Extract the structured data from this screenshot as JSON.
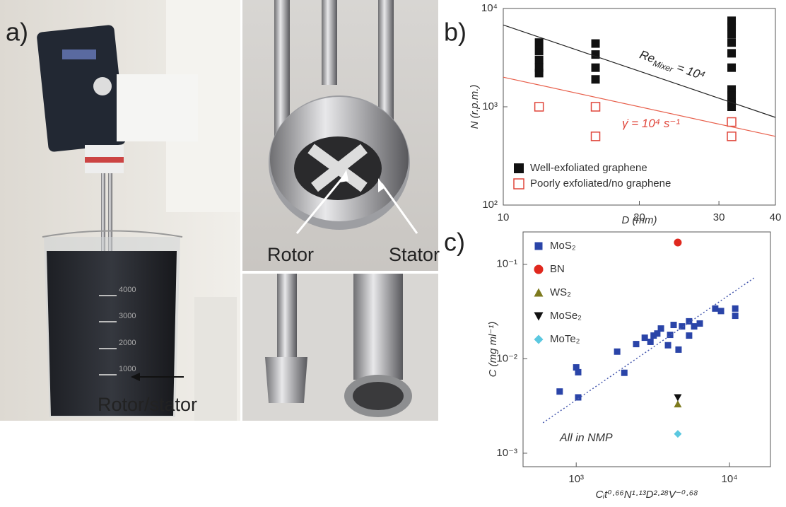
{
  "photo_labels": {
    "panel": "a)",
    "rotor_stator": "Rotor/stator",
    "rotor": "Rotor",
    "stator": "Stator",
    "beaker_marks": [
      "4000",
      "3000",
      "2000",
      "1000"
    ]
  },
  "chart_data": [
    {
      "type": "scatter",
      "panel": "b)",
      "xlabel": "D (mm)",
      "ylabel": "N (r.p.m.)",
      "xscale": "log",
      "yscale": "log",
      "xlim": [
        10,
        40
      ],
      "ylim": [
        100,
        10000
      ],
      "xticks": [
        10,
        20,
        30,
        40
      ],
      "yticks": [
        {
          "value": 100,
          "label": "10²"
        },
        {
          "value": 1000,
          "label": "10³"
        },
        {
          "value": 10000,
          "label": "10⁴"
        }
      ],
      "legend": "lower left",
      "series": [
        {
          "name": "Well-exfoliated graphene",
          "color": "#111111",
          "marker": "square",
          "x": [
            12,
            12,
            12,
            12,
            12,
            16,
            16,
            16,
            16,
            32,
            32,
            32,
            32,
            32,
            32,
            32,
            32,
            32,
            32
          ],
          "values": [
            4500,
            3700,
            3000,
            2500,
            2200,
            4400,
            3400,
            2500,
            1900,
            7500,
            6500,
            5500,
            4500,
            3500,
            2500,
            1500,
            1300,
            1100,
            1000
          ]
        },
        {
          "name": "Poorly exfoliated/no graphene",
          "color": "#e0453a",
          "marker": "open-square",
          "x": [
            12,
            16,
            16,
            32,
            32
          ],
          "values": [
            1000,
            1000,
            500,
            700,
            500
          ]
        },
        {
          "color": "#222222",
          "marker": "line",
          "x": [
            10,
            40
          ],
          "values": [
            6800,
            780
          ]
        },
        {
          "color": "#e8604c",
          "marker": "line",
          "x": [
            10,
            40
          ],
          "values": [
            2000,
            500
          ]
        }
      ],
      "annotations": [
        {
          "text": "Re",
          "subscript": "Mixer",
          "suffix": " = 10⁴",
          "color": "#222222"
        },
        {
          "text": "γ̇ = 10⁴ s⁻¹",
          "color": "#e0453a"
        }
      ]
    },
    {
      "type": "scatter",
      "panel": "c)",
      "xlabel": "Cᵢt⁰·⁶⁶N¹·¹³D²·²⁸V⁻⁰·⁶⁸",
      "ylabel": "C (mg ml⁻¹)",
      "xscale": "log",
      "yscale": "log",
      "xlim": [
        450,
        18500
      ],
      "ylim": [
        0.00072,
        0.22
      ],
      "xticks": [
        {
          "value": 1000,
          "label": "10³"
        },
        {
          "value": 10000,
          "label": "10⁴"
        }
      ],
      "yticks": [
        {
          "value": 0.001,
          "label": "10⁻³"
        },
        {
          "value": 0.01,
          "label": "10⁻²"
        },
        {
          "value": 0.1,
          "label": "10⁻¹"
        }
      ],
      "legend": "upper left",
      "series": [
        {
          "name": "MoS₂",
          "color": "#2a44a8",
          "marker": "square",
          "x": [
            780,
            1000,
            1030,
            1030,
            1850,
            2060,
            2460,
            2800,
            3200,
            3050,
            3570,
            3970,
            3380,
            4100,
            4320,
            4900,
            5450,
            5880,
            6400,
            5450,
            8070,
            8800,
            10900,
            10900,
            4650
          ],
          "values": [
            0.0045,
            0.0081,
            0.0072,
            0.0039,
            0.0119,
            0.0071,
            0.0143,
            0.0167,
            0.0176,
            0.0151,
            0.0209,
            0.0139,
            0.0185,
            0.0179,
            0.0228,
            0.022,
            0.0249,
            0.022,
            0.0236,
            0.0176,
            0.034,
            0.032,
            0.034,
            0.0285,
            0.0125
          ]
        },
        {
          "name": "BN",
          "color": "#e0281e",
          "marker": "circle",
          "x": [
            4600
          ],
          "values": [
            0.17
          ]
        },
        {
          "name": "WS₂",
          "color": "#7d7a1e",
          "marker": "triangle-up",
          "x": [
            4600
          ],
          "values": [
            0.0033
          ]
        },
        {
          "name": "MoSe₂",
          "color": "#111111",
          "marker": "triangle-down",
          "x": [
            4600
          ],
          "values": [
            0.0039
          ]
        },
        {
          "name": "MoTe₂",
          "color": "#5bc8e0",
          "marker": "diamond",
          "x": [
            4600
          ],
          "values": [
            0.0016
          ]
        },
        {
          "color": "#4a5cb0",
          "marker": "dotted-line",
          "x": [
            607,
            14700
          ],
          "values": [
            0.0021,
            0.073
          ]
        }
      ],
      "annotations": [
        {
          "text": "All in NMP",
          "color": "#333333"
        }
      ]
    }
  ]
}
